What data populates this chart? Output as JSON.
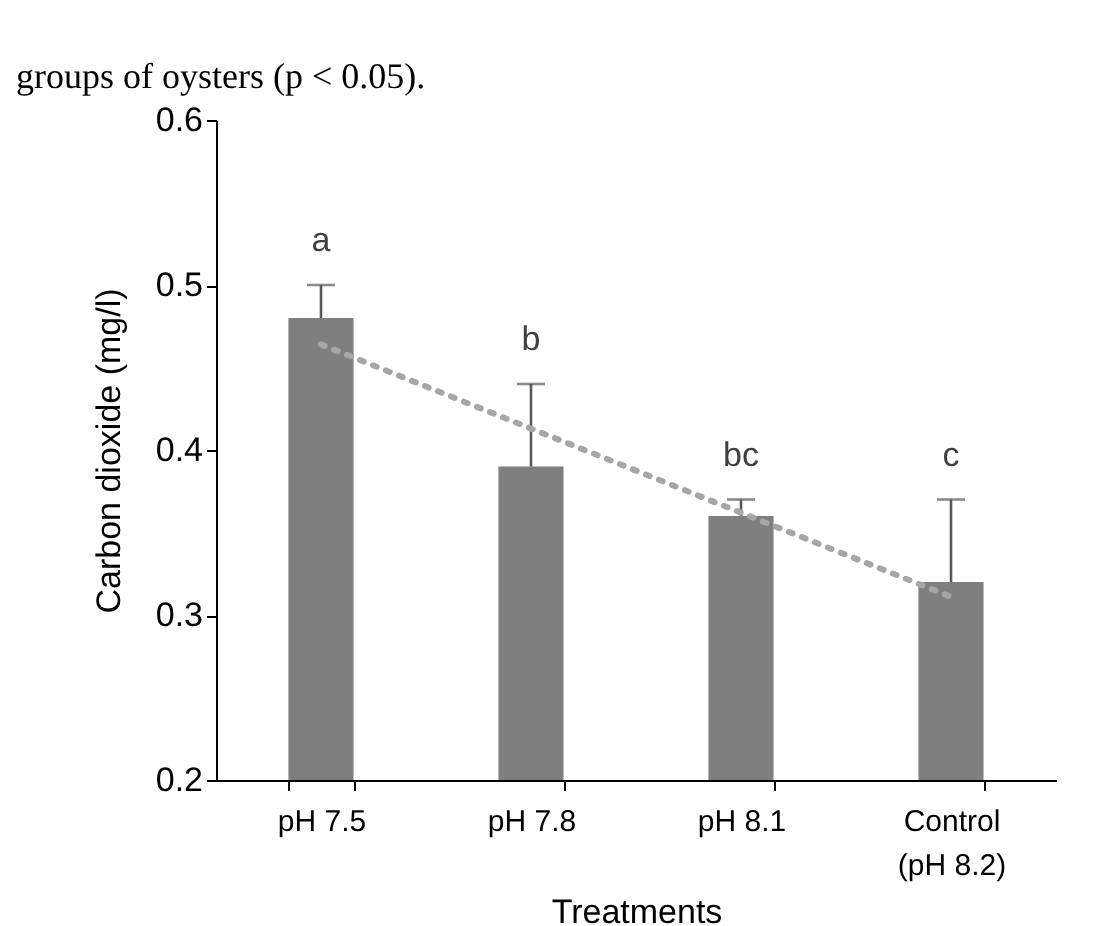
{
  "chart_data": {
    "type": "bar",
    "xlabel": "Treatments",
    "ylabel": "Carbon dioxide (mg/l)",
    "categories": [
      "pH 7.5",
      "pH 7.8",
      "pH 8.1",
      "Control\n(pH 8.2)"
    ],
    "ylim": [
      0.2,
      0.6
    ],
    "yticks": [
      0.2,
      0.3,
      0.4,
      0.5,
      0.6
    ],
    "grid": false,
    "series": [
      {
        "color": "#7f7f7f",
        "values": [
          0.48,
          0.39,
          0.36,
          0.32
        ],
        "errors": [
          [
            0.48,
            0.5
          ],
          [
            0.39,
            0.44
          ],
          [
            0.36,
            0.37
          ],
          [
            0.32,
            0.37
          ]
        ]
      },
      {
        "type": "line",
        "color": "#a6a6a6",
        "line_style": "dotted",
        "marker": "none",
        "x": [
          "pH 7.5",
          "pH 7.8",
          "pH 8.1",
          "Control\n(pH 8.2)"
        ],
        "values": [
          0.464,
          0.413,
          0.362,
          0.311
        ]
      }
    ],
    "annotations": [
      "groups of oysters (p < 0.05).",
      "a",
      "b",
      "bc",
      "c"
    ]
  }
}
